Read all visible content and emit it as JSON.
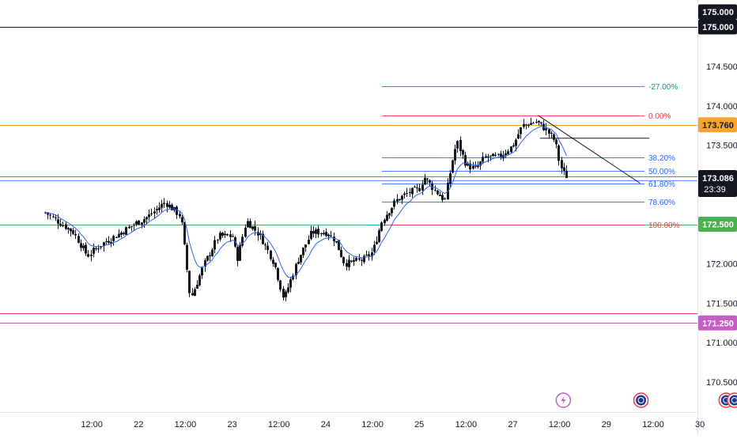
{
  "chart_data": {
    "type": "candlestick",
    "y_axis": {
      "range": [
        170.3,
        175.3
      ],
      "ticks": [
        {
          "value": 174.5,
          "label": "174.500"
        },
        {
          "value": 174.0,
          "label": "174.000"
        },
        {
          "value": 173.5,
          "label": "173.500"
        },
        {
          "value": 172.0,
          "label": "172.000"
        },
        {
          "value": 171.5,
          "label": "171.500"
        },
        {
          "value": 171.0,
          "label": "171.000"
        },
        {
          "value": 170.5,
          "label": "170.500"
        }
      ]
    },
    "x_axis": {
      "ticks": [
        {
          "label": "12:00",
          "t": 1.5
        },
        {
          "label": "22",
          "t": 2.0
        },
        {
          "label": "12:00",
          "t": 2.5
        },
        {
          "label": "23",
          "t": 3.0
        },
        {
          "label": "12:00",
          "t": 3.5
        },
        {
          "label": "24",
          "t": 4.0
        },
        {
          "label": "12:00",
          "t": 4.5
        },
        {
          "label": "25",
          "t": 5.0
        },
        {
          "label": "12:00",
          "t": 5.5
        },
        {
          "label": "27",
          "t": 6.0
        },
        {
          "label": "12:00",
          "t": 6.5
        },
        {
          "label": "29",
          "t": 7.0
        },
        {
          "label": "12:00",
          "t": 7.5
        },
        {
          "label": "30",
          "t": 8.0
        }
      ]
    },
    "price_tags": [
      {
        "label": "175.000",
        "value": 175.0,
        "bg": "#131722",
        "fg": "#ffffff",
        "line": true
      },
      {
        "label": "173.760",
        "value": 173.76,
        "bg": "#f7a32d",
        "fg": "#131722",
        "line": true
      },
      {
        "label": "173.086",
        "value": 173.086,
        "bg": "#131722",
        "fg": "#ffffff",
        "line": false,
        "sub": "23:39"
      },
      {
        "label": "172.500",
        "value": 172.5,
        "bg": "#4caf50",
        "fg": "#ffffff",
        "line": true
      },
      {
        "label": "171.250",
        "value": 171.25,
        "bg": "#c45ec3",
        "fg": "#ffffff",
        "line": true
      }
    ],
    "horizontal_lines": [
      {
        "value": 175.0,
        "color": "#131722"
      },
      {
        "value": 173.76,
        "color": "#f7a32d"
      },
      {
        "value": 173.11,
        "color": "#2196f3"
      },
      {
        "value": 173.06,
        "color": "#5b9cf6"
      },
      {
        "value": 172.5,
        "color": "#4caf50"
      },
      {
        "value": 171.37,
        "color": "#f23645"
      },
      {
        "value": 171.25,
        "color": "#c45ec3"
      }
    ],
    "fib_levels": [
      {
        "label": "-27.00%",
        "value": 174.25,
        "color": "#089981"
      },
      {
        "label": "0.00%",
        "value": 173.88,
        "color": "#f23645"
      },
      {
        "label": "38.20%",
        "value": 173.35,
        "color": "#2962ff"
      },
      {
        "label": "50.00%",
        "value": 173.18,
        "color": "#2962ff"
      },
      {
        "label": "61.80%",
        "value": 173.02,
        "color": "#2962ff"
      },
      {
        "label": "78.60%",
        "value": 172.79,
        "color": "#2962ff"
      },
      {
        "label": "100.00%",
        "value": 172.5,
        "color": "#f23645"
      }
    ],
    "trendlines": [
      {
        "from": [
          6.27,
          173.88
        ],
        "to": [
          7.36,
          173.02
        ],
        "color": "#131722"
      },
      {
        "from": [
          6.29,
          173.59
        ],
        "to": [
          7.46,
          173.59
        ],
        "color": "#131722"
      }
    ],
    "series": [
      {
        "name": "",
        "type": "candles",
        "up_color": "#131722",
        "down_color": "#131722",
        "anchors": [
          [
            1.0,
            172.65
          ],
          [
            1.12,
            172.55
          ],
          [
            1.3,
            172.4
          ],
          [
            1.45,
            172.1
          ],
          [
            1.6,
            172.25
          ],
          [
            1.75,
            172.35
          ],
          [
            1.95,
            172.5
          ],
          [
            2.1,
            172.6
          ],
          [
            2.28,
            172.78
          ],
          [
            2.45,
            172.6
          ],
          [
            2.55,
            171.55
          ],
          [
            2.7,
            172.0
          ],
          [
            2.85,
            172.35
          ],
          [
            3.0,
            172.35
          ],
          [
            3.05,
            172.05
          ],
          [
            3.15,
            172.55
          ],
          [
            3.3,
            172.35
          ],
          [
            3.45,
            172.0
          ],
          [
            3.55,
            171.55
          ],
          [
            3.7,
            172.05
          ],
          [
            3.85,
            172.4
          ],
          [
            4.0,
            172.4
          ],
          [
            4.1,
            172.3
          ],
          [
            4.2,
            172.0
          ],
          [
            4.4,
            172.05
          ],
          [
            4.5,
            172.15
          ],
          [
            4.6,
            172.55
          ],
          [
            4.75,
            172.8
          ],
          [
            4.88,
            172.9
          ],
          [
            5.0,
            172.95
          ],
          [
            5.05,
            173.1
          ],
          [
            5.15,
            172.95
          ],
          [
            5.27,
            172.8
          ],
          [
            5.35,
            173.3
          ],
          [
            5.4,
            173.55
          ],
          [
            5.5,
            173.25
          ],
          [
            5.6,
            173.2
          ],
          [
            5.7,
            173.35
          ],
          [
            5.85,
            173.35
          ],
          [
            6.0,
            173.5
          ],
          [
            6.1,
            173.75
          ],
          [
            6.25,
            173.8
          ],
          [
            6.35,
            173.7
          ],
          [
            6.45,
            173.55
          ],
          [
            6.5,
            173.25
          ],
          [
            6.57,
            173.08
          ]
        ],
        "last_close": 173.086
      }
    ],
    "events": [
      {
        "icon": "lightning-icon",
        "t": 6.54
      },
      {
        "icon": "flag-icon",
        "t": 7.37
      },
      {
        "icon": "flag-icon",
        "t": 8.28
      },
      {
        "icon": "flag-icon",
        "t": 8.37
      }
    ],
    "grid": false
  }
}
